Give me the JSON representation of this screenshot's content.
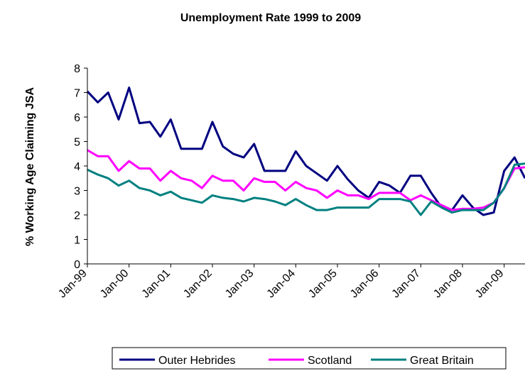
{
  "chart_data": {
    "type": "line",
    "title": "Unemployment Rate 1999 to 2009",
    "xlabel": "",
    "ylabel": "% Working Age Claiming JSA",
    "ylim": [
      0,
      8
    ],
    "yticks": [
      0,
      1,
      2,
      3,
      4,
      5,
      6,
      7,
      8
    ],
    "xtick_labels": [
      "Jan-99",
      "Jan-00",
      "Jan-01",
      "Jan-02",
      "Jan-03",
      "Jan-04",
      "Jan-05",
      "Jan-06",
      "Jan-07",
      "Jan-08",
      "Jan-09"
    ],
    "legend_position": "bottom",
    "grid": false,
    "x": [
      "Jan-99",
      "Apr-99",
      "Jul-99",
      "Oct-99",
      "Jan-00",
      "Apr-00",
      "Jul-00",
      "Oct-00",
      "Jan-01",
      "Apr-01",
      "Jul-01",
      "Oct-01",
      "Jan-02",
      "Apr-02",
      "Jul-02",
      "Oct-02",
      "Jan-03",
      "Apr-03",
      "Jul-03",
      "Oct-03",
      "Jan-04",
      "Apr-04",
      "Jul-04",
      "Oct-04",
      "Jan-05",
      "Apr-05",
      "Jul-05",
      "Oct-05",
      "Jan-06",
      "Apr-06",
      "Jul-06",
      "Oct-06",
      "Jan-07",
      "Apr-07",
      "Jul-07",
      "Oct-07",
      "Jan-08",
      "Apr-08",
      "Jul-08",
      "Oct-08",
      "Jan-09",
      "Apr-09",
      "Jul-09"
    ],
    "series": [
      {
        "name": "Outer Hebrides",
        "color": "#000080",
        "values": [
          7.05,
          6.6,
          7.0,
          5.9,
          7.2,
          5.75,
          5.8,
          5.2,
          5.9,
          4.7,
          4.7,
          4.7,
          5.8,
          4.8,
          4.5,
          4.35,
          4.9,
          3.8,
          3.8,
          3.8,
          4.6,
          4.0,
          3.7,
          3.4,
          4.0,
          3.45,
          3.0,
          2.7,
          3.35,
          3.2,
          2.9,
          3.6,
          3.6,
          2.9,
          2.3,
          2.2,
          2.8,
          2.3,
          2.0,
          2.1,
          3.8,
          4.35,
          3.5
        ]
      },
      {
        "name": "Scotland",
        "color": "#ff00ff",
        "values": [
          4.65,
          4.4,
          4.4,
          3.8,
          4.2,
          3.9,
          3.9,
          3.4,
          3.8,
          3.5,
          3.4,
          3.1,
          3.6,
          3.4,
          3.4,
          3.0,
          3.5,
          3.35,
          3.35,
          3.0,
          3.35,
          3.1,
          3.0,
          2.7,
          3.0,
          2.8,
          2.8,
          2.65,
          2.9,
          2.9,
          2.9,
          2.6,
          2.8,
          2.6,
          2.4,
          2.2,
          2.25,
          2.25,
          2.3,
          2.5,
          3.1,
          3.9,
          3.95
        ]
      },
      {
        "name": "Great Britain",
        "color": "#008080",
        "values": [
          3.85,
          3.65,
          3.5,
          3.2,
          3.4,
          3.1,
          3.0,
          2.8,
          2.95,
          2.7,
          2.6,
          2.5,
          2.8,
          2.7,
          2.65,
          2.55,
          2.7,
          2.65,
          2.55,
          2.4,
          2.65,
          2.4,
          2.2,
          2.2,
          2.3,
          2.3,
          2.3,
          2.3,
          2.65,
          2.65,
          2.65,
          2.55,
          2.0,
          2.55,
          2.3,
          2.1,
          2.2,
          2.2,
          2.2,
          2.5,
          3.1,
          4.05,
          4.1
        ]
      }
    ]
  }
}
